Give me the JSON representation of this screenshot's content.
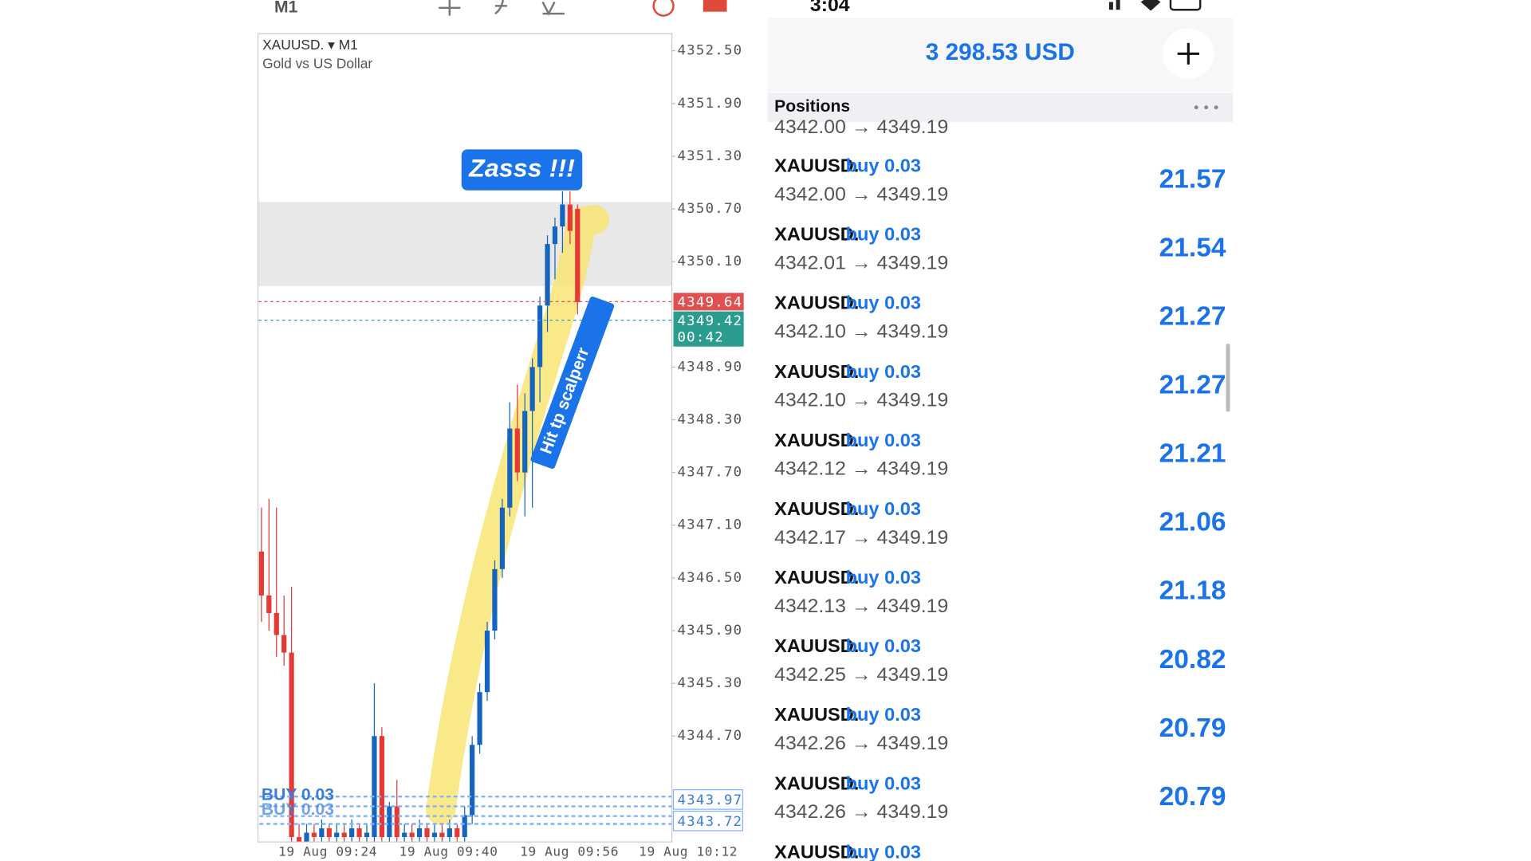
{
  "status_bar": {
    "time": "3:04"
  },
  "toolbar": {
    "timeframe": "M1"
  },
  "chart": {
    "symbol": "XAUUSD. ▾ M1",
    "description": "Gold vs US Dollar",
    "price_ticks": [
      {
        "value": 4352.5,
        "label": "4352.50"
      },
      {
        "value": 4351.9,
        "label": "4351.90"
      },
      {
        "value": 4351.3,
        "label": "4351.30"
      },
      {
        "value": 4350.7,
        "label": "4350.70"
      },
      {
        "value": 4350.1,
        "label": "4350.10"
      },
      {
        "value": 4348.9,
        "label": "4348.90"
      },
      {
        "value": 4348.3,
        "label": "4348.30"
      },
      {
        "value": 4347.7,
        "label": "4347.70"
      },
      {
        "value": 4347.1,
        "label": "4347.10"
      },
      {
        "value": 4346.5,
        "label": "4346.50"
      },
      {
        "value": 4345.9,
        "label": "4345.90"
      },
      {
        "value": 4345.3,
        "label": "4345.30"
      },
      {
        "value": 4344.7,
        "label": "4344.70"
      }
    ],
    "time_labels": [
      "19 Aug 09:24",
      "19 Aug 09:40",
      "19 Aug 09:56",
      "19 Aug 10:12"
    ],
    "bid_tag": "4349.64",
    "ask_tag": "4349.42",
    "countdown": "00:42",
    "order_tags": [
      "4343.97",
      "4343.72"
    ],
    "order_label": "BUY 0.03",
    "candles": [
      {
        "open": 4346.8,
        "high": 4347.3,
        "low": 4346.0,
        "close": 4346.3
      },
      {
        "open": 4346.3,
        "high": 4347.4,
        "low": 4345.9,
        "close": 4346.1
      },
      {
        "open": 4346.1,
        "high": 4347.3,
        "low": 4345.6,
        "close": 4345.85
      },
      {
        "open": 4345.85,
        "high": 4346.3,
        "low": 4345.5,
        "close": 4345.65
      },
      {
        "open": 4345.65,
        "high": 4346.4,
        "low": 4343.5,
        "close": 4343.55
      },
      {
        "open": 4343.55,
        "high": 4343.7,
        "low": 4343.45,
        "close": 4343.5
      },
      {
        "open": 4343.5,
        "high": 4343.7,
        "low": 4343.45,
        "close": 4343.6
      },
      {
        "open": 4343.6,
        "high": 4343.7,
        "low": 4343.45,
        "close": 4343.55
      },
      {
        "open": 4343.55,
        "high": 4343.75,
        "low": 4343.45,
        "close": 4343.65
      },
      {
        "open": 4343.65,
        "high": 4343.7,
        "low": 4343.45,
        "close": 4343.55
      },
      {
        "open": 4343.55,
        "high": 4343.7,
        "low": 4343.45,
        "close": 4343.6
      },
      {
        "open": 4343.6,
        "high": 4343.7,
        "low": 4343.45,
        "close": 4343.55
      },
      {
        "open": 4343.55,
        "high": 4343.75,
        "low": 4343.45,
        "close": 4343.65
      },
      {
        "open": 4343.65,
        "high": 4343.7,
        "low": 4343.45,
        "close": 4343.55
      },
      {
        "open": 4343.55,
        "high": 4343.7,
        "low": 4343.45,
        "close": 4343.6
      },
      {
        "open": 4343.55,
        "high": 4345.3,
        "low": 4343.5,
        "close": 4344.7
      },
      {
        "open": 4344.7,
        "high": 4344.8,
        "low": 4343.5,
        "close": 4343.55
      },
      {
        "open": 4343.55,
        "high": 4343.95,
        "low": 4343.5,
        "close": 4343.9
      },
      {
        "open": 4343.9,
        "high": 4344.2,
        "low": 4343.5,
        "close": 4343.55
      },
      {
        "open": 4343.55,
        "high": 4343.7,
        "low": 4343.45,
        "close": 4343.6
      },
      {
        "open": 4343.6,
        "high": 4343.7,
        "low": 4343.45,
        "close": 4343.55
      },
      {
        "open": 4343.55,
        "high": 4343.75,
        "low": 4343.45,
        "close": 4343.65
      },
      {
        "open": 4343.65,
        "high": 4343.7,
        "low": 4343.45,
        "close": 4343.55
      },
      {
        "open": 4343.55,
        "high": 4343.7,
        "low": 4343.45,
        "close": 4343.6
      },
      {
        "open": 4343.6,
        "high": 4343.7,
        "low": 4343.45,
        "close": 4343.55
      },
      {
        "open": 4343.55,
        "high": 4343.75,
        "low": 4343.45,
        "close": 4343.65
      },
      {
        "open": 4343.65,
        "high": 4343.7,
        "low": 4343.45,
        "close": 4343.55
      },
      {
        "open": 4343.55,
        "high": 4343.9,
        "low": 4343.5,
        "close": 4343.8
      },
      {
        "open": 4343.8,
        "high": 4344.7,
        "low": 4343.7,
        "close": 4344.6
      },
      {
        "open": 4344.6,
        "high": 4345.3,
        "low": 4344.5,
        "close": 4345.2
      },
      {
        "open": 4345.2,
        "high": 4346.0,
        "low": 4345.1,
        "close": 4345.9
      },
      {
        "open": 4345.9,
        "high": 4346.7,
        "low": 4345.8,
        "close": 4346.6
      },
      {
        "open": 4346.6,
        "high": 4347.4,
        "low": 4346.5,
        "close": 4347.3
      },
      {
        "open": 4347.3,
        "high": 4348.5,
        "low": 4347.2,
        "close": 4348.2
      },
      {
        "open": 4348.2,
        "high": 4348.7,
        "low": 4347.6,
        "close": 4347.7
      },
      {
        "open": 4347.7,
        "high": 4348.6,
        "low": 4347.2,
        "close": 4348.4
      },
      {
        "open": 4348.4,
        "high": 4349.0,
        "low": 4347.3,
        "close": 4348.9
      },
      {
        "open": 4348.9,
        "high": 4349.7,
        "low": 4348.5,
        "close": 4349.6
      },
      {
        "open": 4349.6,
        "high": 4350.4,
        "low": 4349.3,
        "close": 4350.3
      },
      {
        "open": 4350.3,
        "high": 4350.6,
        "low": 4349.9,
        "close": 4350.5
      },
      {
        "open": 4350.5,
        "high": 4350.9,
        "low": 4350.2,
        "close": 4350.75
      },
      {
        "open": 4350.75,
        "high": 4350.9,
        "low": 4350.3,
        "close": 4350.45
      },
      {
        "open": 4350.7,
        "high": 4350.75,
        "low": 4349.5,
        "close": 4349.64
      }
    ]
  },
  "annotations": {
    "top": "Zasss !!!",
    "side": "Hit tp scalperr"
  },
  "account": {
    "balance": "3 298.53 USD"
  },
  "positions": {
    "title": "Positions",
    "partial_top": "4342.00 → 4349.19",
    "rows": [
      {
        "symbol": "XAUUSD.",
        "side": "buy 0.03",
        "prices": "4342.00 → 4349.19",
        "profit": "21.57"
      },
      {
        "symbol": "XAUUSD.",
        "side": "buy 0.03",
        "prices": "4342.01 → 4349.19",
        "profit": "21.54"
      },
      {
        "symbol": "XAUUSD.",
        "side": "buy 0.03",
        "prices": "4342.10 → 4349.19",
        "profit": "21.27"
      },
      {
        "symbol": "XAUUSD.",
        "side": "buy 0.03",
        "prices": "4342.10 → 4349.19",
        "profit": "21.27"
      },
      {
        "symbol": "XAUUSD.",
        "side": "buy 0.03",
        "prices": "4342.12 → 4349.19",
        "profit": "21.21"
      },
      {
        "symbol": "XAUUSD.",
        "side": "buy 0.03",
        "prices": "4342.17 → 4349.19",
        "profit": "21.06"
      },
      {
        "symbol": "XAUUSD.",
        "side": "buy 0.03",
        "prices": "4342.13 → 4349.19",
        "profit": "21.18"
      },
      {
        "symbol": "XAUUSD.",
        "side": "buy 0.03",
        "prices": "4342.25 → 4349.19",
        "profit": "20.82"
      },
      {
        "symbol": "XAUUSD.",
        "side": "buy 0.03",
        "prices": "4342.26 → 4349.19",
        "profit": "20.79"
      },
      {
        "symbol": "XAUUSD.",
        "side": "buy 0.03",
        "prices": "4342.26 → 4349.19",
        "profit": "20.79"
      }
    ],
    "partial_bottom": {
      "symbol": "XAUUSD.",
      "side": "buy 0.03"
    }
  }
}
